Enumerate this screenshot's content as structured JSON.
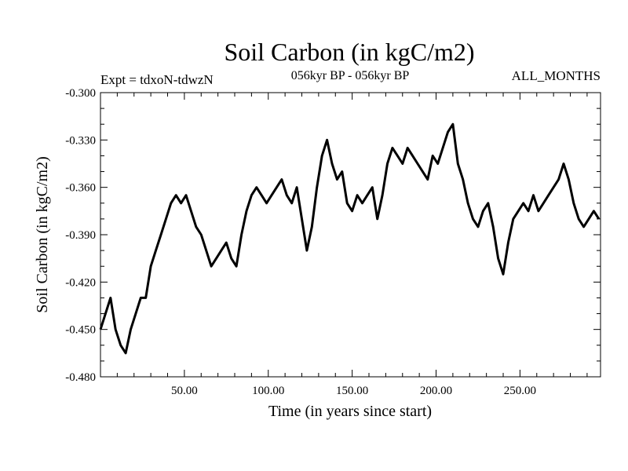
{
  "chart_data": {
    "type": "line",
    "title": "Soil Carbon (in kgC/m2)",
    "subtitle_left": "Expt = tdxoN-tdwzN",
    "subtitle_center": "056kyr BP - 056kyr BP",
    "subtitle_right": "ALL_MONTHS",
    "xlabel": "Time (in years since start)",
    "ylabel": "Soil Carbon (in kgC/m2)",
    "xlim": [
      0,
      298
    ],
    "ylim": [
      -0.48,
      -0.3
    ],
    "xticks": [
      50,
      100,
      150,
      200,
      250
    ],
    "xtick_labels": [
      "50.00",
      "100.00",
      "150.00",
      "200.00",
      "250.00"
    ],
    "yticks": [
      -0.48,
      -0.45,
      -0.42,
      -0.39,
      -0.36,
      -0.33,
      -0.3
    ],
    "ytick_labels": [
      "-0.480",
      "-0.450",
      "-0.420",
      "-0.390",
      "-0.360",
      "-0.330",
      "-0.300"
    ],
    "grid": false,
    "line_color": "#000000",
    "series": [
      {
        "x": [
          0,
          3,
          6,
          9,
          12,
          15,
          18,
          21,
          24,
          27,
          30,
          33,
          36,
          39,
          42,
          45,
          48,
          51,
          54,
          57,
          60,
          63,
          66,
          69,
          72,
          75,
          78,
          81,
          84,
          87,
          90,
          93,
          96,
          99,
          102,
          105,
          108,
          111,
          114,
          117,
          120,
          123,
          126,
          129,
          132,
          135,
          138,
          141,
          144,
          147,
          150,
          153,
          156,
          159,
          162,
          165,
          168,
          171,
          174,
          177,
          180,
          183,
          186,
          189,
          192,
          195,
          198,
          201,
          204,
          207,
          210,
          213,
          216,
          219,
          222,
          225,
          228,
          231,
          234,
          237,
          240,
          243,
          246,
          249,
          252,
          255,
          258,
          261,
          264,
          267,
          270,
          273,
          276,
          279,
          282,
          285,
          288,
          291,
          294,
          297
        ],
        "y": [
          -0.45,
          -0.44,
          -0.43,
          -0.45,
          -0.46,
          -0.465,
          -0.45,
          -0.44,
          -0.43,
          -0.43,
          -0.41,
          -0.4,
          -0.39,
          -0.38,
          -0.37,
          -0.365,
          -0.37,
          -0.365,
          -0.375,
          -0.385,
          -0.39,
          -0.4,
          -0.41,
          -0.405,
          -0.4,
          -0.395,
          -0.405,
          -0.41,
          -0.39,
          -0.375,
          -0.365,
          -0.36,
          -0.365,
          -0.37,
          -0.365,
          -0.36,
          -0.355,
          -0.365,
          -0.37,
          -0.36,
          -0.38,
          -0.4,
          -0.385,
          -0.36,
          -0.34,
          -0.33,
          -0.345,
          -0.355,
          -0.35,
          -0.37,
          -0.375,
          -0.365,
          -0.37,
          -0.365,
          -0.36,
          -0.38,
          -0.365,
          -0.345,
          -0.335,
          -0.34,
          -0.345,
          -0.335,
          -0.34,
          -0.345,
          -0.35,
          -0.355,
          -0.34,
          -0.345,
          -0.335,
          -0.325,
          -0.32,
          -0.345,
          -0.355,
          -0.37,
          -0.38,
          -0.385,
          -0.375,
          -0.37,
          -0.385,
          -0.405,
          -0.415,
          -0.395,
          -0.38,
          -0.375,
          -0.37,
          -0.375,
          -0.365,
          -0.375,
          -0.37,
          -0.365,
          -0.36,
          -0.355,
          -0.345,
          -0.355,
          -0.37,
          -0.38,
          -0.385,
          -0.38,
          -0.375,
          -0.38
        ]
      }
    ]
  }
}
